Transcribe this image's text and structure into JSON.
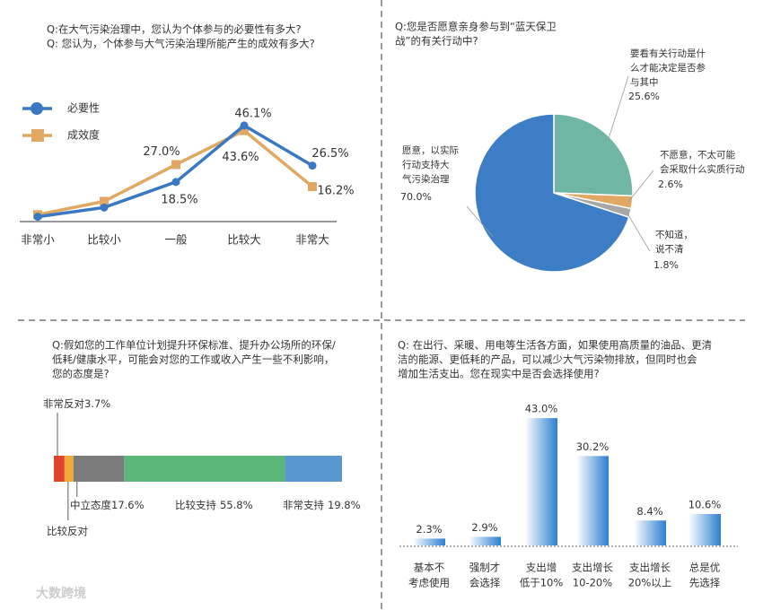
{
  "chart_data": [
    {
      "type": "line",
      "title": [
        "Q:在大气污染治理中，您认为个体参与的必要性有多大?",
        "Q: 您认为，个体参与大气污染治理所能产生的成效有多大?"
      ],
      "categories": [
        "非常小",
        "比较小",
        "一般",
        "比较大",
        "非常大"
      ],
      "series": [
        {
          "name": "必要性",
          "color": "#3a78c3",
          "marker": "circle",
          "values": [
            1.5,
            6.0,
            18.5,
            46.1,
            26.5
          ],
          "value_labels": [
            null,
            null,
            "18.5%",
            "46.1%",
            "26.5%"
          ]
        },
        {
          "name": "成效度",
          "color": "#e0a862",
          "marker": "square",
          "values": [
            2.5,
            9.0,
            27.0,
            43.6,
            16.2
          ],
          "value_labels": [
            null,
            null,
            "27.0%",
            "43.6%",
            "16.2%"
          ]
        }
      ]
    },
    {
      "type": "pie",
      "title": [
        "Q:您是否愿意亲身参与到“蓝天保卫",
        "战”的有关行动中?"
      ],
      "categories": [
        [
          "要看有关行动是什",
          "么才能决定是否参",
          "与其中"
        ],
        [
          "不愿意，不太可能",
          "会采取什么实质行动"
        ],
        [
          "不知道，",
          "说不清"
        ],
        [
          "愿意，以实际",
          "行动支持大",
          "气污染治理"
        ]
      ],
      "values": [
        25.6,
        2.6,
        1.8,
        70.0
      ],
      "value_labels": [
        "25.6%",
        "2.6%",
        "1.8%",
        "70.0%"
      ],
      "colors": [
        "#6fb6a4",
        "#e0a862",
        "#a8a8a8",
        "#3d7dc6"
      ]
    },
    {
      "type": "stacked_bar",
      "title": [
        "Q:假如您的工作单位计划提升环保标准、提升办公场所的环保/",
        "低耗/健康水平，可能会对您的工作或收入产生一些不利影响，",
        "您的态度是?"
      ],
      "categories": [
        "非常反对",
        "比较反对",
        "中立态度",
        "比较支持",
        "非常支持"
      ],
      "values": [
        3.7,
        3.1,
        17.6,
        55.8,
        19.8
      ],
      "value_labels": [
        "3.7%",
        null,
        "17.6%",
        "55.8%",
        "19.8%"
      ],
      "colors": [
        "#e0442f",
        "#f2a93b",
        "#7b7b7b",
        "#5cb87a",
        "#5a96cf"
      ]
    },
    {
      "type": "bar",
      "title": [
        "Q: 在出行、采暖、用电等生活各方面，如果使用高质量的油品、更清",
        "洁的能源、更低耗的产品，可以减少大气污染物排放，但同时也会",
        "增加生活支出。您在现实中是否会选择使用?"
      ],
      "categories": [
        [
          "基本不",
          "考虑使用"
        ],
        [
          "强制才",
          "会选择"
        ],
        [
          "支出增",
          "低于10%"
        ],
        [
          "支出增长",
          "10-20%"
        ],
        [
          "支出增长",
          "20%以上"
        ],
        [
          "总是优",
          "先选择"
        ]
      ],
      "values": [
        2.3,
        2.9,
        43.0,
        30.2,
        8.4,
        10.6
      ],
      "value_labels": [
        "2.3%",
        "2.9%",
        "43.0%",
        "30.2%",
        "8.4%",
        "10.6%"
      ],
      "color": "#2a7fd0"
    }
  ],
  "watermark": "大数跨境"
}
